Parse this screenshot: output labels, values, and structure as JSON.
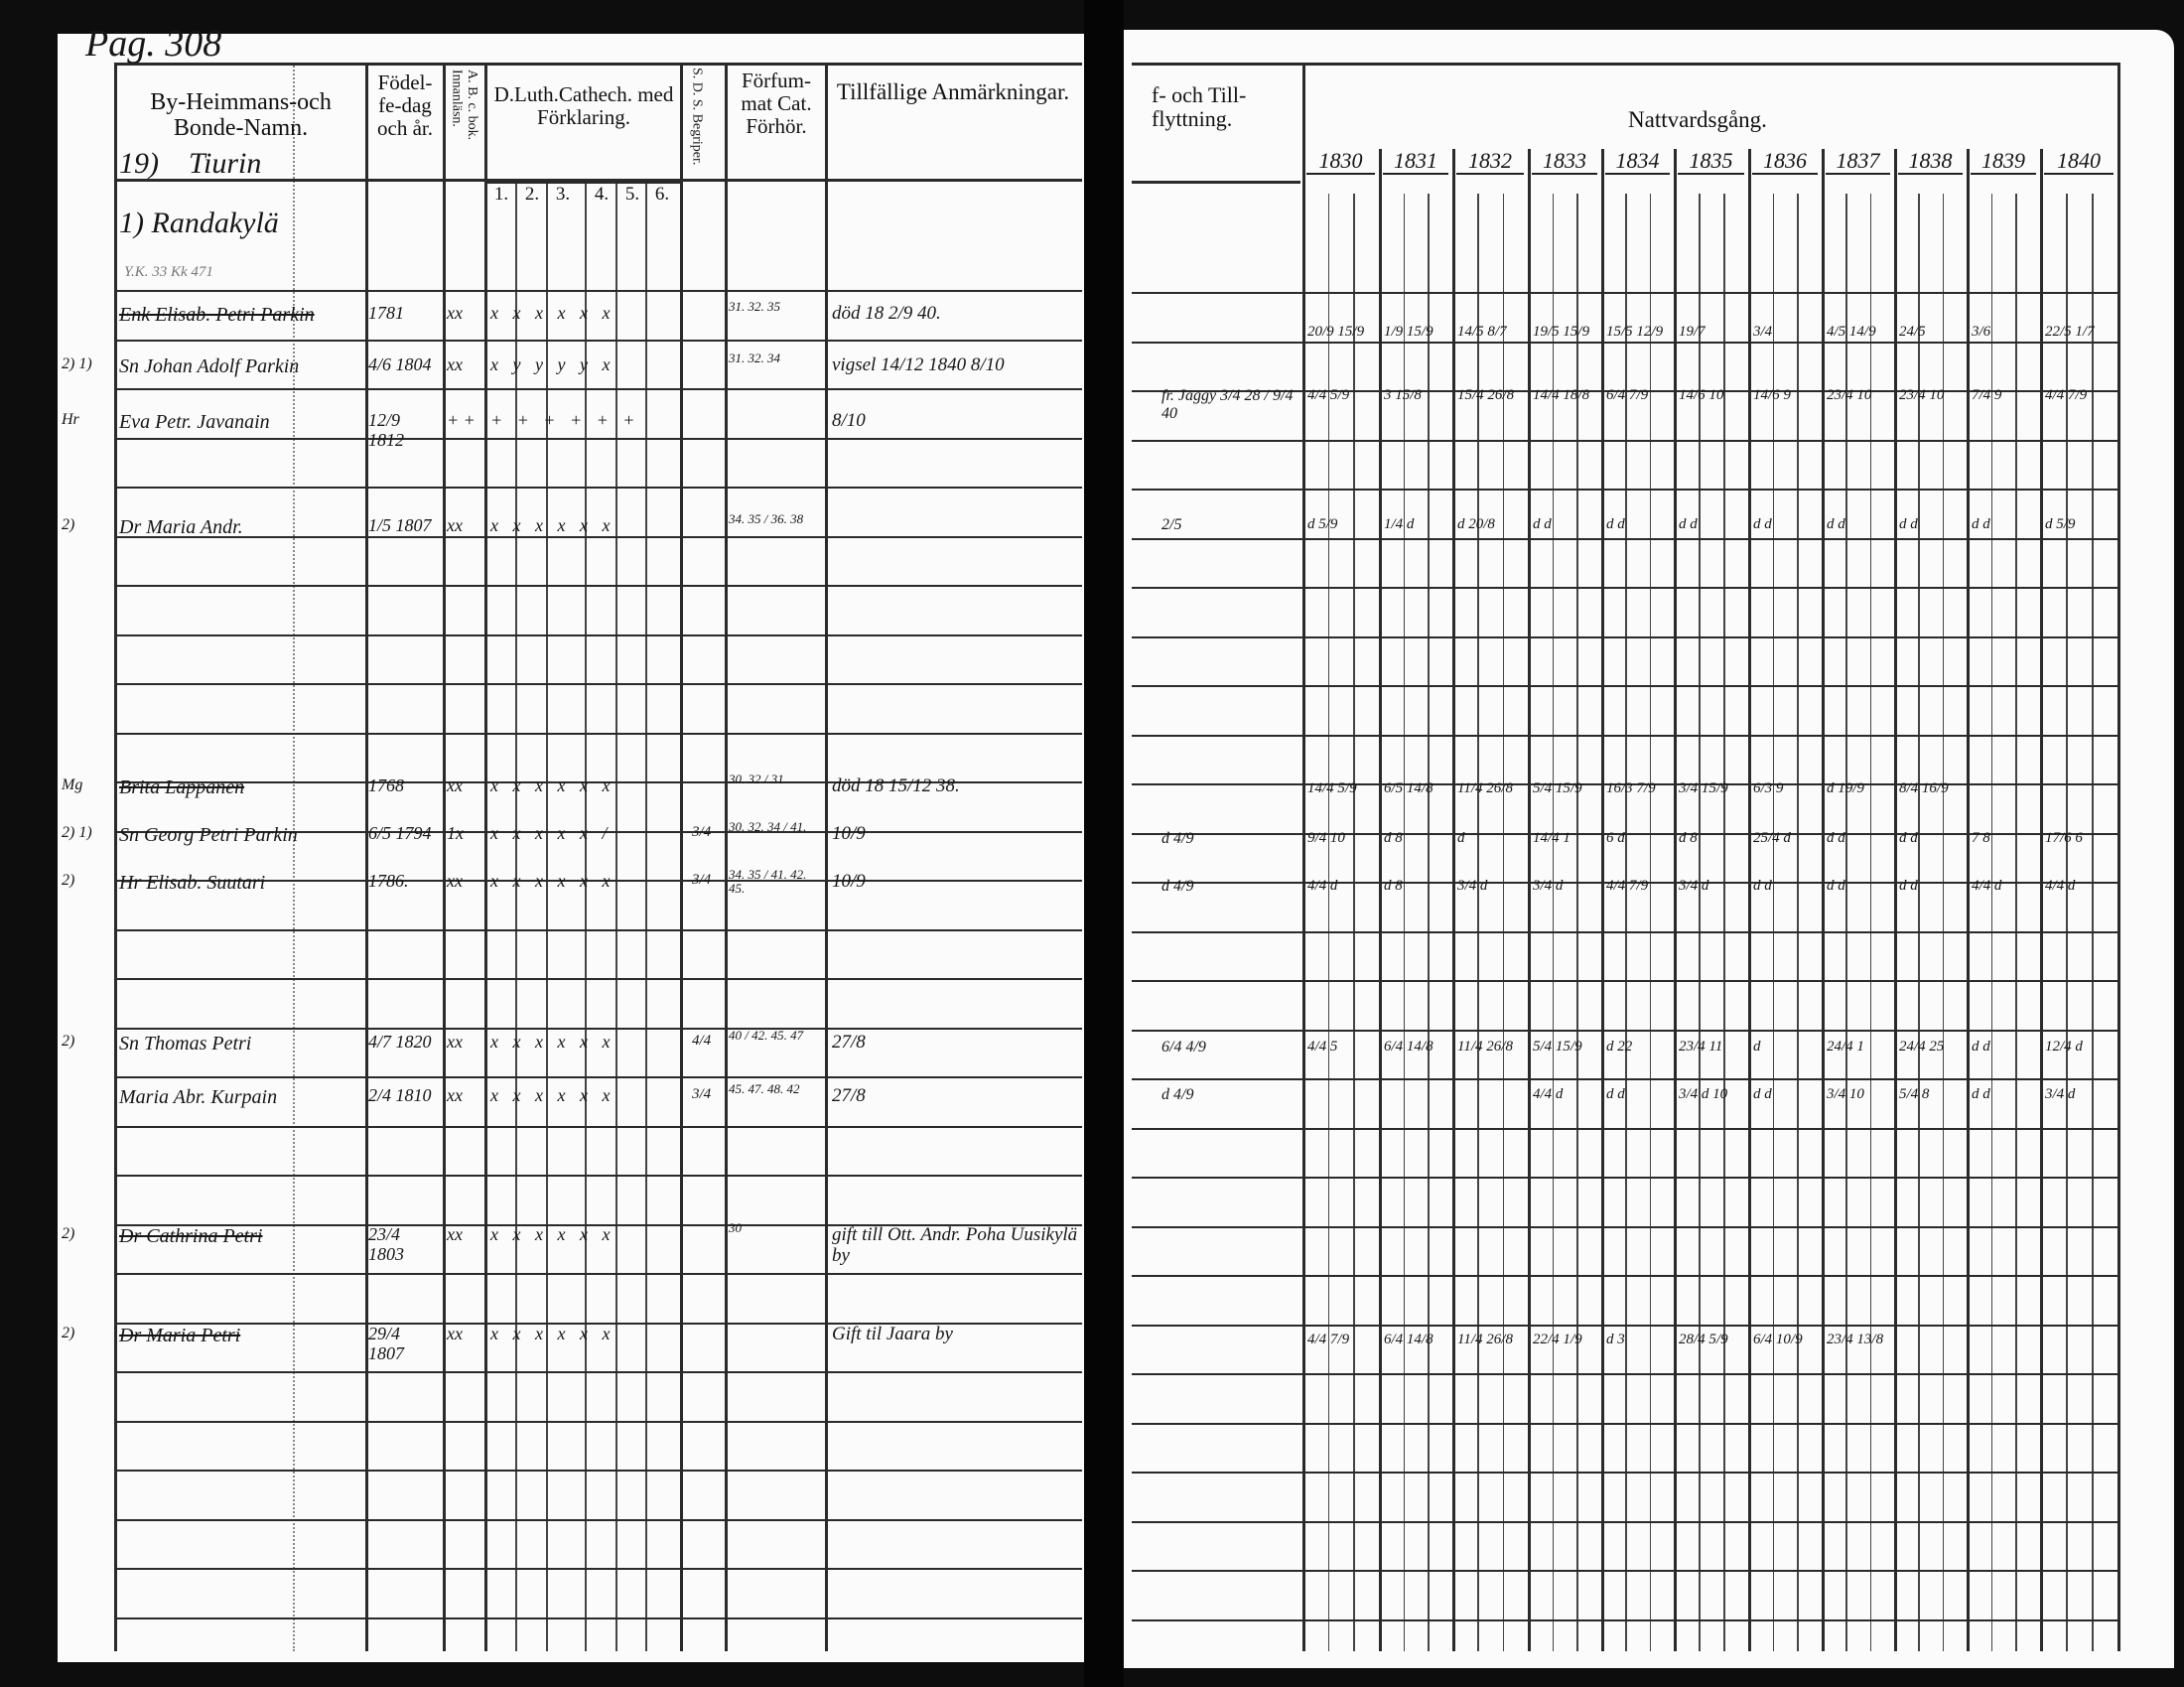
{
  "left_page": {
    "page_number": "Pag. 308",
    "headers": {
      "name": "By-Heimmans-och Bonde-Namn.",
      "birth": "Födel-fe-dag och år.",
      "abc": "A. B. c. bok. Innanläsn.",
      "catechism": "D.Luth.Cathech. med Förklaring.",
      "catechism_parts": [
        "1.",
        "2.",
        "3.",
        "4.",
        "5.",
        "6."
      ],
      "sds": "S. D. S. Begriper.",
      "forfum": "Förfum-mat Cat. Förhör.",
      "remarks": "Tillfällige Anmärkningar."
    },
    "village": {
      "number": "19)",
      "name": "Tiurin",
      "sub": "1) Randakylä",
      "note": "Y.K. 33   Kk 471"
    },
    "entries": [
      {
        "prefix": "",
        "name": "Enk Elisab. Petri Parkin",
        "birth": "1781",
        "abc": "xx",
        "cat": "x x x x x x",
        "sds": "",
        "forfum": "31. 32. 35",
        "remarks": "död 18 2/9 40.",
        "struck": true
      },
      {
        "prefix": "2) 1)",
        "name": "Sn Johan Adolf Parkin",
        "birth": "4/6 1804",
        "abc": "xx",
        "cat": "x y y y y x",
        "sds": "",
        "forfum": "31. 32. 34",
        "remarks": "vigsel 14/12 1840 8/10",
        "struck": false
      },
      {
        "prefix": "Hr",
        "name": "Eva Petr. Javanain",
        "birth": "12/9 1812",
        "abc": "+ +",
        "cat": "+ + + + + +",
        "sds": "",
        "forfum": "",
        "remarks": "8/10",
        "struck": false
      },
      {
        "prefix": "2)",
        "name": "Dr Maria Andr.",
        "birth": "1/5 1807",
        "abc": "xx",
        "cat": "x x x x x x",
        "sds": "",
        "forfum": "34. 35 / 36. 38",
        "remarks": "",
        "struck": false
      },
      {
        "prefix": "Mg",
        "name": "Brita Lappanen",
        "birth": "1768",
        "abc": "xx",
        "cat": "x x x x x x",
        "sds": "",
        "forfum": "30. 32 / 31",
        "remarks": "död 18 15/12 38.",
        "struck": true
      },
      {
        "prefix": "2) 1)",
        "name": "Sn Georg Petri Parkin",
        "birth": "6/5 1794",
        "abc": "1x",
        "cat": "x x x x x /",
        "sds": "3/4",
        "forfum": "30. 32. 34 / 41.",
        "remarks": "10/9",
        "struck": false
      },
      {
        "prefix": "2)",
        "name": "Hr Elisab. Suutari",
        "birth": "1786.",
        "abc": "xx",
        "cat": "x x x x x x",
        "sds": "3/4",
        "forfum": "34. 35 / 41. 42. 45.",
        "remarks": "10/9",
        "struck": false
      },
      {
        "prefix": "2)",
        "name": "Sn Thomas Petri",
        "birth": "4/7 1820",
        "abc": "xx",
        "cat": "x x x x x x",
        "sds": "4/4",
        "forfum": "40 / 42. 45. 47",
        "remarks": "27/8",
        "struck": false
      },
      {
        "prefix": "",
        "name": "Maria Abr. Kurpain",
        "birth": "2/4 1810",
        "abc": "xx",
        "cat": "x x x x x x",
        "sds": "3/4",
        "forfum": "45. 47. 48. 42",
        "remarks": "27/8",
        "struck": false
      },
      {
        "prefix": "2)",
        "name": "Dr Cathrina Petri",
        "birth": "23/4 1803",
        "abc": "xx",
        "cat": "x x x x x x",
        "sds": "",
        "forfum": "30",
        "remarks": "gift till Ott. Andr. Poha Uusikylä by",
        "struck": true
      },
      {
        "prefix": "2)",
        "name": "Dr Maria Petri",
        "birth": "29/4 1807",
        "abc": "xx",
        "cat": "x x x x x x",
        "sds": "",
        "forfum": "",
        "remarks": "Gift til Jaara by",
        "struck": true
      }
    ]
  },
  "right_page": {
    "headers": {
      "moving": "f- och Till-flyttning.",
      "communion": "Nattvardsgång."
    },
    "years": [
      "1830",
      "1831",
      "1832",
      "1833",
      "1834",
      "1835",
      "1836",
      "1837",
      "1838",
      "1839",
      "1840"
    ],
    "rows": [
      {
        "moving": "",
        "marks": [
          "20/9 15/9",
          "1/9 15/9",
          "14/5 8/7",
          "19/5 15/9",
          "15/5 12/9",
          "19/7",
          "3/4",
          "4/5 14/9",
          "24/5",
          "3/6",
          "22/5 1/7"
        ]
      },
      {
        "moving": "fr. Jaggy 3/4 28 / 9/4 40",
        "marks": [
          "4/4 5/9",
          "3 15/8",
          "15/4 26/8",
          "14/4 18/8",
          "6/4 7/9",
          "14/6 10",
          "14/6 9",
          "23/4 10",
          "23/4 10",
          "7/4 9",
          "4/4 7/9"
        ]
      },
      {
        "moving": "2/5",
        "marks": [
          "d 5/9",
          "1/4 d",
          "d 20/8",
          "d d",
          "d d",
          "d d",
          "d d",
          "d d",
          "d d",
          "d d",
          "d 5/9"
        ]
      },
      {
        "moving": "",
        "marks": [
          "14/4 5/9",
          "6/5 14/8",
          "11/4 26/8",
          "5/4 15/9",
          "16/3 7/9",
          "3/4 15/9",
          "6/3 9",
          "d 19/9",
          "8/4 16/9",
          "",
          ""
        ]
      },
      {
        "moving": "d 4/9",
        "marks": [
          "9/4 10",
          "d 8",
          "d",
          "14/4 1",
          "6 d",
          "d 8",
          "25/4 d",
          "d d",
          "d d",
          "7 8",
          "17/6 6"
        ]
      },
      {
        "moving": "d 4/9",
        "marks": [
          "4/4 d",
          "d 8",
          "3/4 d",
          "3/4 d",
          "4/4 7/9",
          "3/4 d",
          "d d",
          "d d",
          "d d",
          "4/4 d",
          "4/4 d"
        ]
      },
      {
        "moving": "6/4 4/9",
        "marks": [
          "4/4 5",
          "6/4 14/8",
          "11/4 26/8",
          "5/4 15/9",
          "d 22",
          "23/4 11",
          "d",
          "24/4 1",
          "24/4 25",
          "d d",
          "12/4 d"
        ]
      },
      {
        "moving": "d 4/9",
        "marks": [
          "",
          "",
          "",
          "4/4 d",
          "d d",
          "3/4 d 10",
          "d d",
          "3/4 10",
          "5/4 8",
          "d d",
          "3/4 d"
        ]
      },
      {
        "moving": "",
        "marks": [
          "4/4 7/9",
          "6/4 14/8",
          "11/4 26/8",
          "22/4 1/9",
          "d 3",
          "28/4 5/9",
          "6/4 10/9",
          "23/4 13/8",
          "",
          "",
          ""
        ]
      }
    ]
  }
}
